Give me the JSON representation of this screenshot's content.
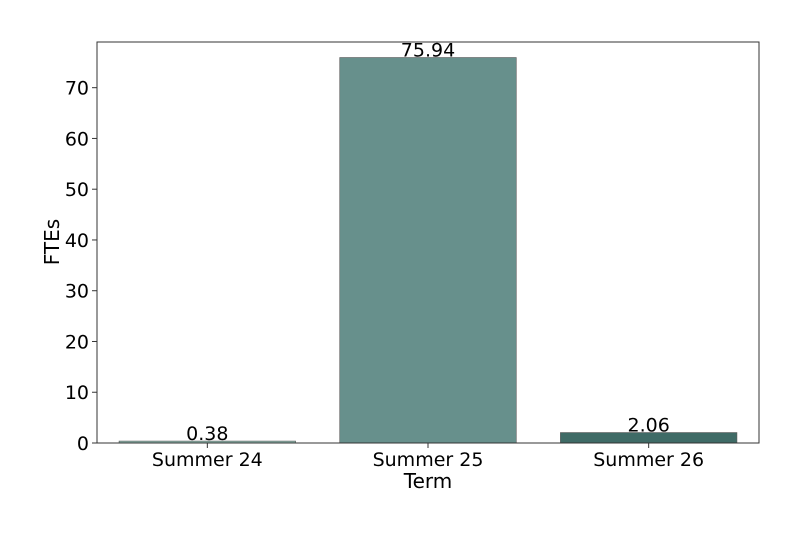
{
  "chart_data": {
    "type": "bar",
    "title": "",
    "xlabel": "Term",
    "ylabel": "FTEs",
    "categories": [
      "Summer 24",
      "Summer 25",
      "Summer 26"
    ],
    "values": [
      0.38,
      75.94,
      2.06
    ],
    "data_labels": [
      "0.38",
      "75.94",
      "2.06"
    ],
    "bar_colors": [
      "#8fbcb0",
      "#67908c",
      "#3f6b66"
    ],
    "ylim": [
      0,
      79
    ],
    "yticks": [
      0,
      10,
      20,
      30,
      40,
      50,
      60,
      70
    ],
    "ytick_labels": [
      "0",
      "10",
      "20",
      "30",
      "40",
      "50",
      "60",
      "70"
    ],
    "grid": false,
    "legend": "none"
  }
}
